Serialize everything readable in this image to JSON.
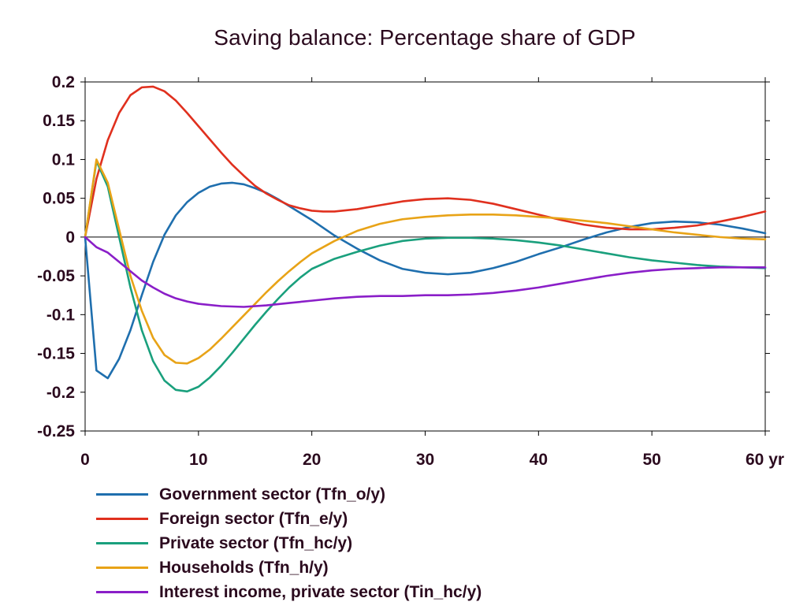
{
  "chart_data": {
    "type": "line",
    "title": "Saving balance: Percentage share of GDP",
    "xlabel": "",
    "ylabel": "",
    "x_unit": "yr",
    "xlim": [
      0,
      60
    ],
    "ylim": [
      -0.25,
      0.2
    ],
    "x_ticks": [
      0,
      10,
      20,
      30,
      40,
      50,
      60
    ],
    "x_tick_labels": [
      "0",
      "10",
      "20",
      "30",
      "40",
      "50",
      "60 yr"
    ],
    "y_ticks": [
      0.2,
      0.15,
      0.1,
      0.05,
      0,
      -0.05,
      -0.1,
      -0.15,
      -0.2,
      -0.25
    ],
    "y_tick_labels": [
      "0.2",
      "0.15",
      "0.1",
      "0.05",
      "0",
      "-0.05",
      "-0.1",
      "-0.15",
      "-0.2",
      "-0.25"
    ],
    "grid": false,
    "legend_position": "bottom",
    "zero_line": true,
    "series": [
      {
        "name": "Government sector (Tfn_o/y)",
        "color": "#1f6fae",
        "points": [
          [
            0,
            0
          ],
          [
            1,
            -0.172
          ],
          [
            2,
            -0.182
          ],
          [
            3,
            -0.157
          ],
          [
            4,
            -0.12
          ],
          [
            5,
            -0.075
          ],
          [
            6,
            -0.032
          ],
          [
            7,
            0.003
          ],
          [
            8,
            0.028
          ],
          [
            9,
            0.045
          ],
          [
            10,
            0.057
          ],
          [
            11,
            0.065
          ],
          [
            12,
            0.069
          ],
          [
            13,
            0.07
          ],
          [
            14,
            0.068
          ],
          [
            15,
            0.063
          ],
          [
            16,
            0.057
          ],
          [
            17,
            0.049
          ],
          [
            18,
            0.04
          ],
          [
            19,
            0.031
          ],
          [
            20,
            0.022
          ],
          [
            21,
            0.012
          ],
          [
            22,
            0.002
          ],
          [
            24,
            -0.015
          ],
          [
            26,
            -0.03
          ],
          [
            28,
            -0.041
          ],
          [
            30,
            -0.046
          ],
          [
            32,
            -0.048
          ],
          [
            34,
            -0.046
          ],
          [
            36,
            -0.04
          ],
          [
            38,
            -0.032
          ],
          [
            40,
            -0.022
          ],
          [
            42,
            -0.013
          ],
          [
            44,
            -0.003
          ],
          [
            46,
            0.006
          ],
          [
            48,
            0.013
          ],
          [
            50,
            0.018
          ],
          [
            52,
            0.02
          ],
          [
            54,
            0.019
          ],
          [
            56,
            0.016
          ],
          [
            58,
            0.011
          ],
          [
            60,
            0.005
          ]
        ]
      },
      {
        "name": "Foreign sector (Tfn_e/y)",
        "color": "#e0301e",
        "points": [
          [
            0,
            0
          ],
          [
            1,
            0.075
          ],
          [
            2,
            0.125
          ],
          [
            3,
            0.16
          ],
          [
            4,
            0.183
          ],
          [
            5,
            0.193
          ],
          [
            6,
            0.194
          ],
          [
            7,
            0.188
          ],
          [
            8,
            0.176
          ],
          [
            9,
            0.16
          ],
          [
            10,
            0.143
          ],
          [
            11,
            0.126
          ],
          [
            12,
            0.109
          ],
          [
            13,
            0.093
          ],
          [
            14,
            0.079
          ],
          [
            15,
            0.066
          ],
          [
            16,
            0.056
          ],
          [
            17,
            0.048
          ],
          [
            18,
            0.041
          ],
          [
            19,
            0.037
          ],
          [
            20,
            0.034
          ],
          [
            21,
            0.033
          ],
          [
            22,
            0.033
          ],
          [
            24,
            0.036
          ],
          [
            26,
            0.041
          ],
          [
            28,
            0.046
          ],
          [
            30,
            0.049
          ],
          [
            32,
            0.05
          ],
          [
            34,
            0.048
          ],
          [
            36,
            0.043
          ],
          [
            38,
            0.036
          ],
          [
            40,
            0.029
          ],
          [
            42,
            0.022
          ],
          [
            44,
            0.016
          ],
          [
            46,
            0.012
          ],
          [
            48,
            0.01
          ],
          [
            50,
            0.01
          ],
          [
            52,
            0.012
          ],
          [
            54,
            0.015
          ],
          [
            56,
            0.02
          ],
          [
            58,
            0.026
          ],
          [
            60,
            0.033
          ]
        ]
      },
      {
        "name": "Private sector (Tfn_hc/y)",
        "color": "#1aa07d",
        "points": [
          [
            0,
            0
          ],
          [
            1,
            0.098
          ],
          [
            2,
            0.065
          ],
          [
            3,
            0.0
          ],
          [
            4,
            -0.065
          ],
          [
            5,
            -0.12
          ],
          [
            6,
            -0.16
          ],
          [
            7,
            -0.185
          ],
          [
            8,
            -0.197
          ],
          [
            9,
            -0.199
          ],
          [
            10,
            -0.193
          ],
          [
            11,
            -0.181
          ],
          [
            12,
            -0.166
          ],
          [
            13,
            -0.149
          ],
          [
            14,
            -0.131
          ],
          [
            15,
            -0.113
          ],
          [
            16,
            -0.096
          ],
          [
            17,
            -0.08
          ],
          [
            18,
            -0.065
          ],
          [
            19,
            -0.052
          ],
          [
            20,
            -0.041
          ],
          [
            22,
            -0.028
          ],
          [
            24,
            -0.019
          ],
          [
            26,
            -0.011
          ],
          [
            28,
            -0.005
          ],
          [
            30,
            -0.002
          ],
          [
            32,
            -0.001
          ],
          [
            34,
            -0.001
          ],
          [
            36,
            -0.002
          ],
          [
            38,
            -0.004
          ],
          [
            40,
            -0.007
          ],
          [
            42,
            -0.011
          ],
          [
            44,
            -0.016
          ],
          [
            46,
            -0.021
          ],
          [
            48,
            -0.026
          ],
          [
            50,
            -0.03
          ],
          [
            52,
            -0.033
          ],
          [
            54,
            -0.036
          ],
          [
            56,
            -0.038
          ],
          [
            58,
            -0.039
          ],
          [
            60,
            -0.04
          ]
        ]
      },
      {
        "name": "Households (Tfn_h/y)",
        "color": "#e8a317",
        "points": [
          [
            0,
            0
          ],
          [
            1,
            0.1
          ],
          [
            2,
            0.07
          ],
          [
            3,
            0.01
          ],
          [
            4,
            -0.05
          ],
          [
            5,
            -0.095
          ],
          [
            6,
            -0.13
          ],
          [
            7,
            -0.152
          ],
          [
            8,
            -0.162
          ],
          [
            9,
            -0.163
          ],
          [
            10,
            -0.156
          ],
          [
            11,
            -0.145
          ],
          [
            12,
            -0.131
          ],
          [
            13,
            -0.116
          ],
          [
            14,
            -0.101
          ],
          [
            15,
            -0.086
          ],
          [
            16,
            -0.071
          ],
          [
            17,
            -0.057
          ],
          [
            18,
            -0.044
          ],
          [
            19,
            -0.032
          ],
          [
            20,
            -0.021
          ],
          [
            22,
            -0.005
          ],
          [
            24,
            0.008
          ],
          [
            26,
            0.017
          ],
          [
            28,
            0.023
          ],
          [
            30,
            0.026
          ],
          [
            32,
            0.028
          ],
          [
            34,
            0.029
          ],
          [
            36,
            0.029
          ],
          [
            38,
            0.028
          ],
          [
            40,
            0.026
          ],
          [
            42,
            0.024
          ],
          [
            44,
            0.021
          ],
          [
            46,
            0.018
          ],
          [
            48,
            0.014
          ],
          [
            50,
            0.01
          ],
          [
            52,
            0.006
          ],
          [
            54,
            0.003
          ],
          [
            56,
            0.0
          ],
          [
            58,
            -0.002
          ],
          [
            60,
            -0.003
          ]
        ]
      },
      {
        "name": "Interest income, private sector (Tin_hc/y)",
        "color": "#8a1ec8",
        "points": [
          [
            0,
            0
          ],
          [
            1,
            -0.013
          ],
          [
            2,
            -0.02
          ],
          [
            3,
            -0.032
          ],
          [
            4,
            -0.044
          ],
          [
            5,
            -0.056
          ],
          [
            6,
            -0.065
          ],
          [
            7,
            -0.073
          ],
          [
            8,
            -0.079
          ],
          [
            9,
            -0.083
          ],
          [
            10,
            -0.086
          ],
          [
            12,
            -0.089
          ],
          [
            14,
            -0.09
          ],
          [
            16,
            -0.088
          ],
          [
            18,
            -0.085
          ],
          [
            20,
            -0.082
          ],
          [
            22,
            -0.079
          ],
          [
            24,
            -0.077
          ],
          [
            26,
            -0.076
          ],
          [
            28,
            -0.076
          ],
          [
            30,
            -0.075
          ],
          [
            32,
            -0.075
          ],
          [
            34,
            -0.074
          ],
          [
            36,
            -0.072
          ],
          [
            38,
            -0.069
          ],
          [
            40,
            -0.065
          ],
          [
            42,
            -0.06
          ],
          [
            44,
            -0.055
          ],
          [
            46,
            -0.05
          ],
          [
            48,
            -0.046
          ],
          [
            50,
            -0.043
          ],
          [
            52,
            -0.041
          ],
          [
            54,
            -0.04
          ],
          [
            56,
            -0.039
          ],
          [
            58,
            -0.039
          ],
          [
            60,
            -0.039
          ]
        ]
      }
    ]
  }
}
